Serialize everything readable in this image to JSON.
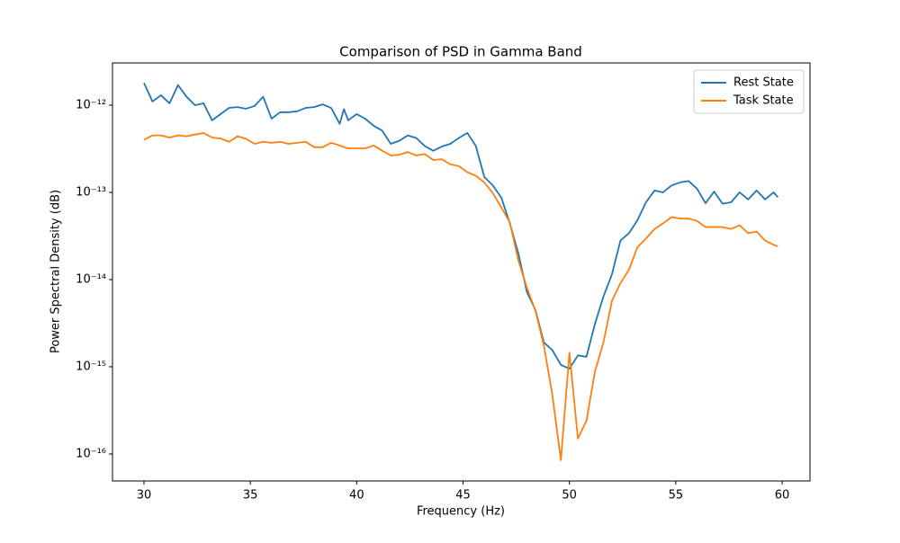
{
  "chart_data": {
    "type": "line",
    "title": "Comparison of PSD in Gamma Band",
    "x_label": "Frequency (Hz)",
    "y_label": "Power Spectral Density (dB)",
    "x": [
      30,
      30.4,
      30.8,
      31.2,
      31.6,
      32,
      32.4,
      32.8,
      33.2,
      33.6,
      34,
      34.4,
      34.8,
      35.2,
      35.6,
      36,
      36.4,
      36.8,
      37.2,
      37.6,
      38,
      38.4,
      38.8,
      39.2,
      39.4,
      39.6,
      40,
      40.4,
      40.8,
      41.2,
      41.6,
      42,
      42.4,
      42.8,
      43.2,
      43.6,
      44,
      44.4,
      44.8,
      45.2,
      45.6,
      46,
      46.4,
      46.8,
      47.2,
      47.6,
      48,
      48.4,
      48.8,
      49.2,
      49.6,
      50,
      50.4,
      50.8,
      51.2,
      51.6,
      52,
      52.4,
      52.8,
      53.2,
      53.6,
      54,
      54.4,
      54.8,
      55.2,
      55.6,
      56,
      56.4,
      56.8,
      57.2,
      57.6,
      58,
      58.4,
      58.8,
      59.2,
      59.6,
      59.8
    ],
    "series": [
      {
        "name": "Rest State",
        "color": "#1f77b4",
        "values": [
          1.8e-12,
          1.1e-12,
          1.3e-12,
          1.05e-12,
          1.7e-12,
          1.25e-12,
          1e-12,
          1.05e-12,
          6.7e-13,
          7.9e-13,
          9.3e-13,
          9.5e-13,
          9.1e-13,
          9.8e-13,
          1.25e-12,
          7e-13,
          8.3e-13,
          8.3e-13,
          8.5e-13,
          9.3e-13,
          9.5e-13,
          1.02e-12,
          9.3e-13,
          6.1e-13,
          9e-13,
          6.7e-13,
          7.9e-13,
          7e-13,
          5.8e-13,
          5.1e-13,
          3.6e-13,
          3.9e-13,
          4.5e-13,
          4.2e-13,
          3.4e-13,
          3e-13,
          3.35e-13,
          3.6e-13,
          4.2e-13,
          4.8e-13,
          3.4e-13,
          1.5e-13,
          1.2e-13,
          8.7e-14,
          4.4e-14,
          2e-14,
          7.2e-15,
          4.5e-15,
          1.9e-15,
          1.55e-15,
          1.05e-15,
          9.5e-16,
          1.35e-15,
          1.3e-15,
          3.1e-15,
          6.4e-15,
          1.15e-14,
          2.8e-14,
          3.4e-14,
          4.8e-14,
          7.7e-14,
          1.05e-13,
          1e-13,
          1.2e-13,
          1.3e-13,
          1.35e-13,
          1.1e-13,
          7.5e-14,
          1.02e-13,
          7.4e-14,
          7.7e-14,
          1e-13,
          8.3e-14,
          1.05e-13,
          8.3e-14,
          1e-13,
          8.8e-14
        ]
      },
      {
        "name": "Task State",
        "color": "#ff7f0e",
        "values": [
          4e-13,
          4.5e-13,
          4.5e-13,
          4.25e-13,
          4.5e-13,
          4.4e-13,
          4.6e-13,
          4.8e-13,
          4.25e-13,
          4.15e-13,
          3.8e-13,
          4.4e-13,
          4.1e-13,
          3.6e-13,
          3.8e-13,
          3.7e-13,
          3.8e-13,
          3.6e-13,
          3.7e-13,
          3.8e-13,
          3.3e-13,
          3.3e-13,
          3.7e-13,
          3.45e-13,
          3.3e-13,
          3.2e-13,
          3.2e-13,
          3.2e-13,
          3.45e-13,
          3e-13,
          2.65e-13,
          2.7e-13,
          2.9e-13,
          2.65e-13,
          2.75e-13,
          2.35e-13,
          2.4e-13,
          2.1e-13,
          2e-13,
          1.7e-13,
          1.55e-13,
          1.3e-13,
          9.8e-14,
          6.7e-14,
          4.5e-14,
          1.65e-14,
          8.1e-15,
          4.4e-15,
          1.75e-15,
          4.7e-16,
          8.5e-17,
          1.45e-15,
          1.5e-16,
          2.4e-16,
          8.8e-16,
          1.9e-15,
          5.7e-15,
          9.1e-15,
          1.3e-14,
          2.35e-14,
          2.95e-14,
          3.8e-14,
          4.4e-14,
          5.2e-14,
          5e-14,
          5e-14,
          4.7e-14,
          4e-14,
          4e-14,
          4e-14,
          3.8e-14,
          4.2e-14,
          3.4e-14,
          3.55e-14,
          2.8e-14,
          2.5e-14,
          2.4e-14
        ]
      }
    ],
    "xlim": [
      28.52,
      61.31
    ],
    "xticks": [
      30,
      35,
      40,
      45,
      50,
      55,
      60
    ],
    "ylim": [
      4.9e-17,
      3.05e-12
    ],
    "log_y": true,
    "yticks": [
      {
        "value": 1e-16,
        "label": "10⁻¹⁶"
      },
      {
        "value": 1e-15,
        "label": "10⁻¹⁵"
      },
      {
        "value": 1e-14,
        "label": "10⁻¹⁴"
      },
      {
        "value": 1e-13,
        "label": "10⁻¹³"
      },
      {
        "value": 1e-12,
        "label": "10⁻¹²"
      }
    ],
    "legend": "upper right"
  }
}
